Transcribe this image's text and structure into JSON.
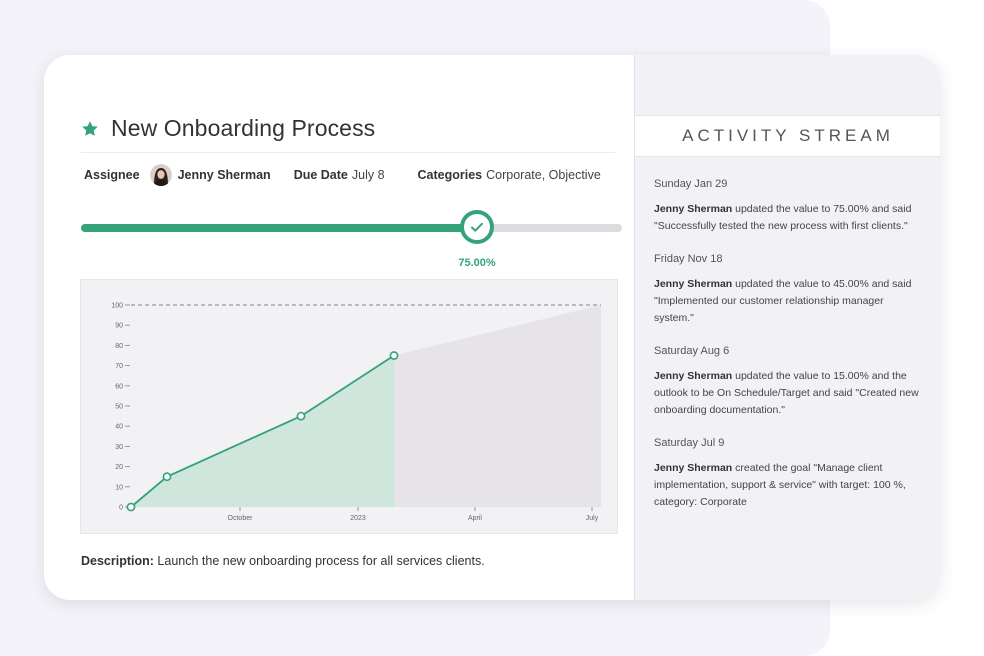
{
  "goal": {
    "title": "New Onboarding Process",
    "assignee_label": "Assignee",
    "assignee_name": "Jenny Sherman",
    "due_label": "Due Date",
    "due_value": "July 8",
    "categories_label": "Categories",
    "categories_value": "Corporate, Objective",
    "progress_percent": 75,
    "progress_text": "75.00%",
    "description_label": "Description:",
    "description_text": "Launch the new onboarding process for all services clients."
  },
  "colors": {
    "accent": "#35a27a",
    "area_fill": "#cfe6dc",
    "projection_fill": "#e6e4e9",
    "track": "#dcdbe0"
  },
  "icons": {
    "title": "star-icon",
    "progress_handle": "check-icon"
  },
  "chart_data": {
    "type": "area",
    "title": "",
    "xlabel": "",
    "ylabel": "",
    "ylim": [
      0,
      100
    ],
    "y_ticks": [
      0,
      10,
      20,
      30,
      40,
      50,
      60,
      70,
      80,
      90,
      100
    ],
    "x_tick_labels": [
      "October",
      "2023",
      "April",
      "July"
    ],
    "series": [
      {
        "values_pct": [
          0,
          15,
          45,
          75
        ]
      }
    ],
    "target": 100,
    "target_line": "dashed",
    "projection": "shaded area from latest point to target",
    "grid": false
  },
  "activity": {
    "header": "ACTIVITY STREAM",
    "items": [
      {
        "date": "Sunday Jan 29",
        "user": "Jenny Sherman",
        "text": " updated the value to 75.00% and said \"Successfully tested the new process with first clients.\""
      },
      {
        "date": "Friday Nov 18",
        "user": "Jenny Sherman",
        "text": " updated the value to 45.00% and said \"Implemented our customer relationship manager system.\""
      },
      {
        "date": "Saturday Aug 6",
        "user": "Jenny Sherman",
        "text": " updated the value to 15.00% and the outlook to be On Schedule/Target and said \"Created new onboarding documentation.\""
      },
      {
        "date": "Saturday Jul 9",
        "user": "Jenny Sherman",
        "text": " created the goal \"Manage client implementation, support & service\" with target: 100 %, category: Corporate"
      }
    ]
  }
}
